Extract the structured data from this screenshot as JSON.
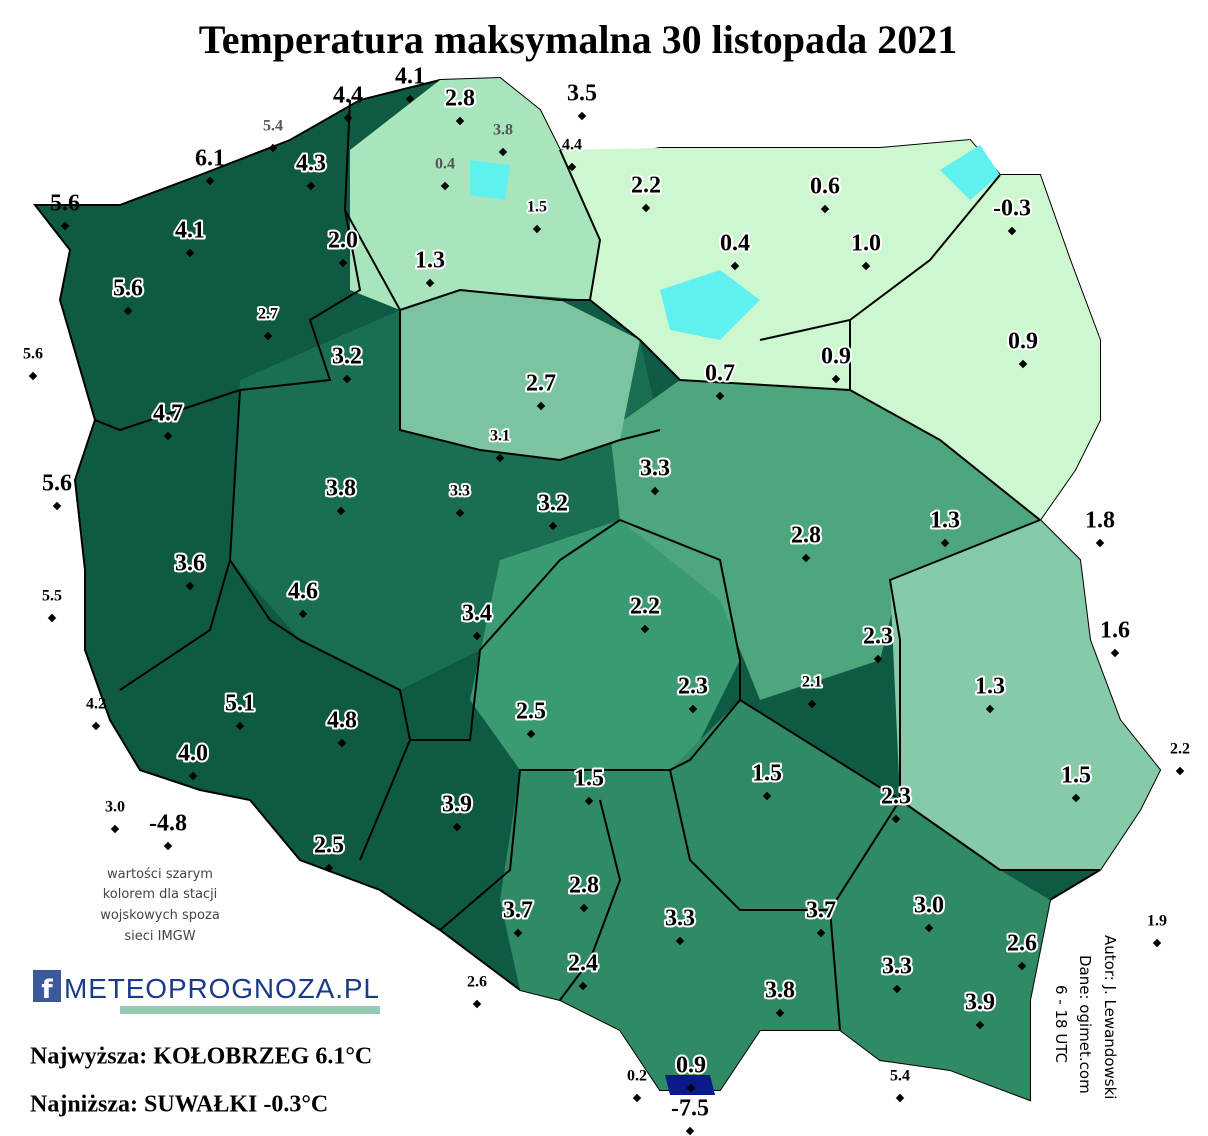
{
  "header": {
    "title": "Temperatura maksymalna 30 listopada 2021"
  },
  "stations": [
    "4.4",
    "4.1",
    "3.5",
    "5.6",
    "6.1",
    "5.6",
    "5.6",
    "5.5",
    "4.2",
    "3.0",
    "-4.8",
    "1.8",
    "1.6",
    "2.2",
    "1.9",
    "2.6",
    "0.2",
    "-7.5",
    "5.4",
    "5.4",
    "3.8",
    "0.4",
    "4.4",
    "1.5",
    "2.8",
    "4.3",
    "2.2",
    "0.6",
    "-0.3",
    "4.1",
    "2.0",
    "1.3",
    "0.4",
    "1.0",
    "5.6",
    "2.7",
    "3.2",
    "0.9",
    "0.7",
    "0.9",
    "2.7",
    "4.7",
    "3.1",
    "3.3",
    "3.8",
    "3.3",
    "3.2",
    "1.3",
    "2.8",
    "3.6",
    "4.6",
    "3.4",
    "2.2",
    "2.3",
    "2.1",
    "2.3",
    "1.3",
    "5.1",
    "4.8",
    "2.5",
    "4.0",
    "1.5",
    "1.5",
    "1.5",
    "2.3",
    "3.9",
    "2.5",
    "2.8",
    "3.7",
    "3.3",
    "3.7",
    "3.0",
    "2.6",
    "2.4",
    "3.3",
    "3.8",
    "3.9",
    "0.9"
  ],
  "note": [
    "wartości szarym",
    "kolorem dla stacji",
    "wojskowych spoza",
    "sieci IMGW"
  ],
  "logo": "METEOPROGNOZA.PL",
  "summary": {
    "highest": "Najwyższa: KOŁOBRZEG 6.1°C",
    "lowest": "Najniższa: SUWAŁKI -0.3°C"
  },
  "credits": [
    "Autor: J. Lewandowski",
    "Dane: ogimet.com",
    "6 - 18 UTC"
  ]
}
